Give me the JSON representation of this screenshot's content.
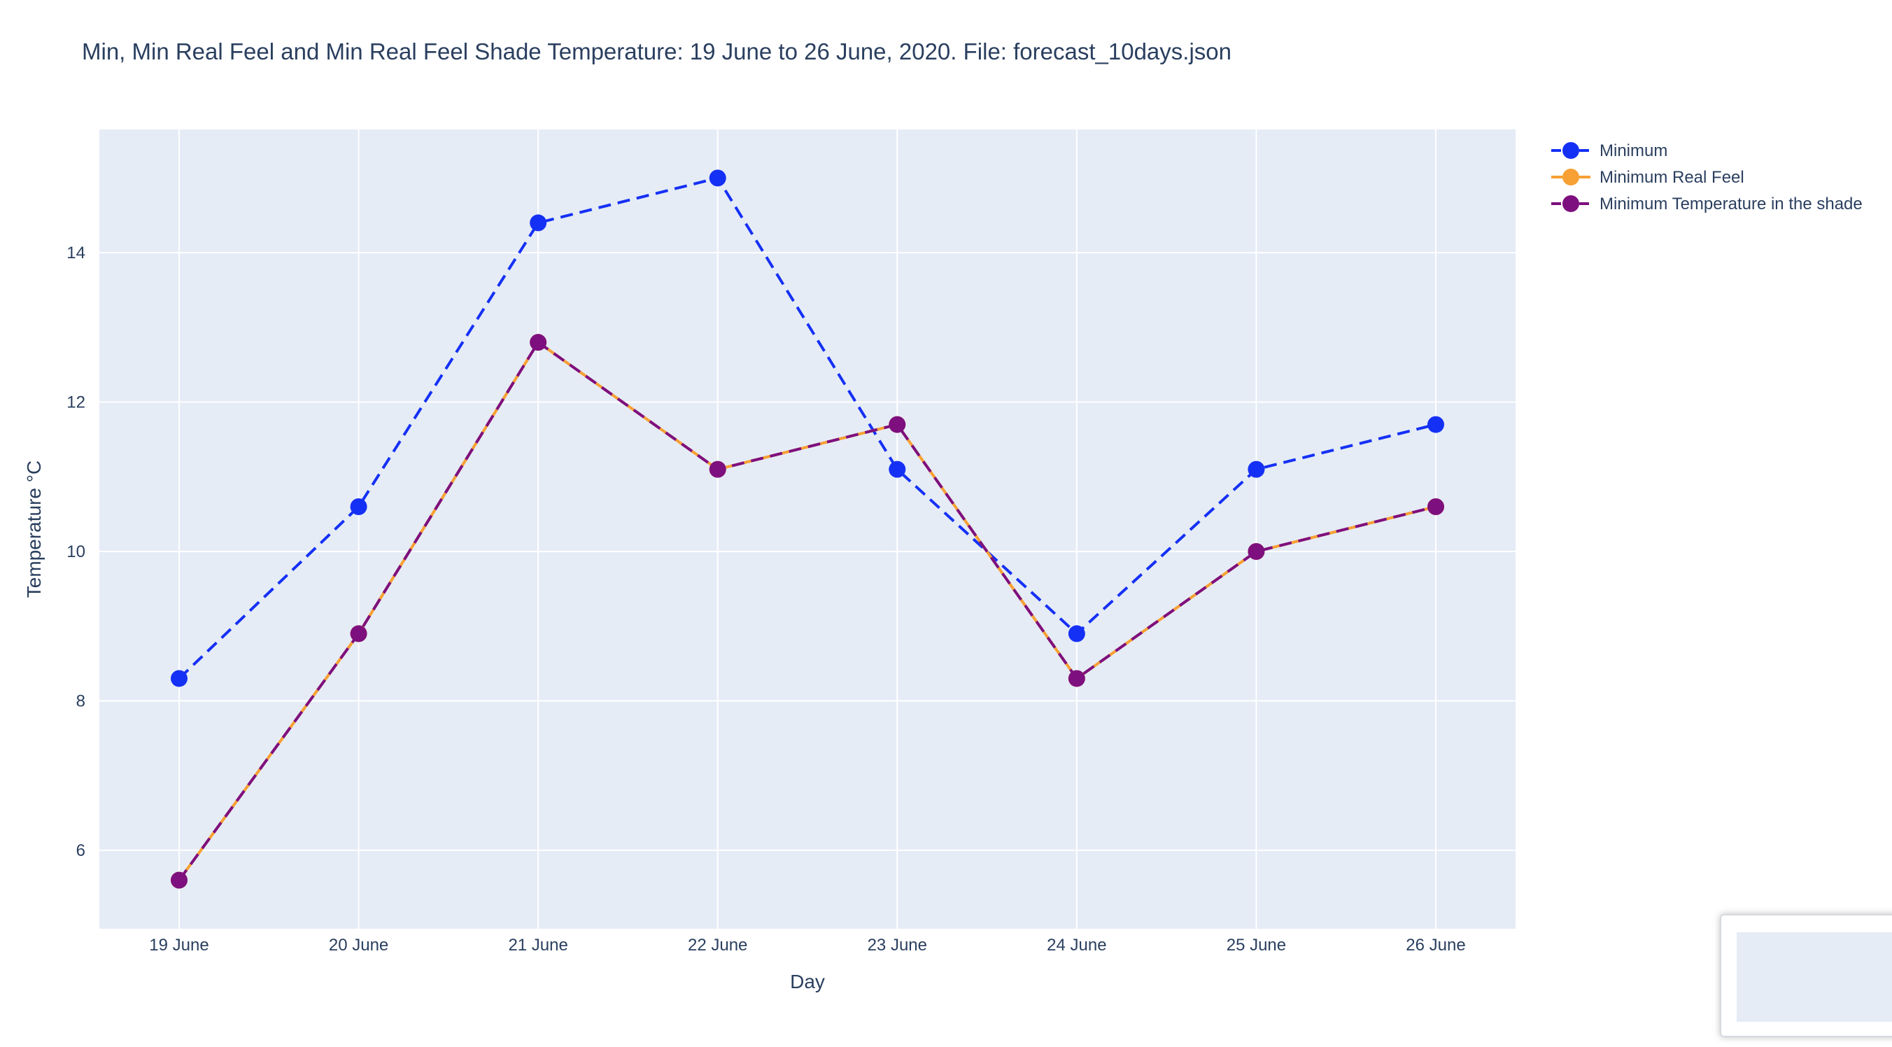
{
  "chart_data": {
    "type": "line",
    "title": "Min, Min Real Feel and Min Real Feel Shade Temperature: 19 June to 26 June, 2020. File: forecast_10days.json",
    "xlabel": "Day",
    "ylabel": "Temperature °C",
    "categories": [
      "19 June",
      "20 June",
      "21 June",
      "22 June",
      "23 June",
      "24 June",
      "25 June",
      "26 June"
    ],
    "ylim": [
      4.95,
      15.65
    ],
    "yticks": [
      6,
      8,
      10,
      12,
      14
    ],
    "grid": true,
    "legend_position": "top-right",
    "plot_background": "#e5ecf6",
    "series": [
      {
        "name": "Minimum",
        "values": [
          8.3,
          10.6,
          14.4,
          15.0,
          11.1,
          8.9,
          11.1,
          11.7
        ],
        "color": "#1530f5",
        "line_style": "dashed"
      },
      {
        "name": "Minimum Real Feel",
        "values": [
          5.6,
          8.9,
          12.8,
          11.1,
          11.7,
          8.3,
          10.0,
          10.6
        ],
        "color": "#f7a034",
        "line_style": "solid"
      },
      {
        "name": "Minimum Temperature in the shade",
        "values": [
          5.6,
          8.9,
          12.8,
          11.1,
          11.7,
          8.3,
          10.0,
          10.6
        ],
        "color": "#7e0f7e",
        "line_style": "dashed"
      }
    ]
  }
}
